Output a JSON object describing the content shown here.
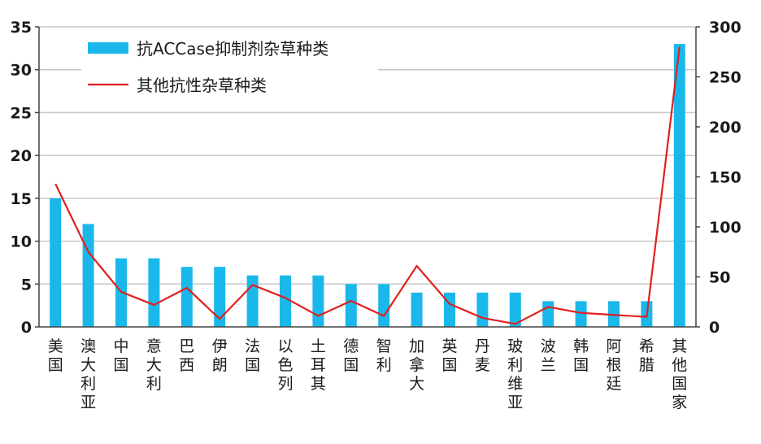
{
  "chart_data": {
    "type": "bar+line",
    "categories": [
      "美国",
      "澳大利亚",
      "中国",
      "意大利",
      "巴西",
      "伊朗",
      "法国",
      "以色列",
      "土耳其",
      "德国",
      "智利",
      "加拿大",
      "英国",
      "丹麦",
      "玻利维亚",
      "波兰",
      "韩国",
      "阿根廷",
      "希腊",
      "其他国家"
    ],
    "series": [
      {
        "name": "抗ACCase抑制剂杂草种类",
        "kind": "bar",
        "axis": "left",
        "color": "#1ab8ea",
        "values": [
          15,
          12,
          8,
          8,
          7,
          7,
          6,
          6,
          6,
          5,
          5,
          4,
          4,
          4,
          4,
          3,
          3,
          3,
          3,
          33
        ]
      },
      {
        "name": "其他抗性杂草种类",
        "kind": "line",
        "axis": "right",
        "color": "#e02020",
        "values": [
          143,
          75,
          35,
          22,
          39,
          8,
          42,
          29,
          11,
          26,
          11,
          61,
          23,
          9,
          3,
          20,
          14,
          12,
          10,
          280
        ]
      }
    ],
    "y_left": {
      "lim": [
        0,
        35
      ],
      "ticks": [
        "0",
        "5",
        "10",
        "15",
        "20",
        "25",
        "30",
        "35"
      ]
    },
    "y_right": {
      "lim": [
        0,
        300
      ],
      "ticks": [
        "0",
        "50",
        "100",
        "150",
        "200",
        "250",
        "300"
      ]
    },
    "grid": true,
    "legend_position": "top-left"
  }
}
